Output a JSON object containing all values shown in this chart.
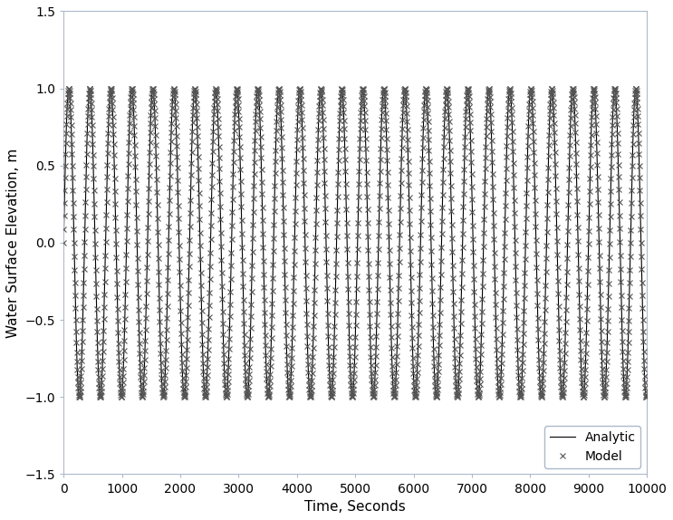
{
  "title": "",
  "xlabel": "Time, Seconds",
  "ylabel": "Water Surface Elevation, m",
  "xlim": [
    0,
    10000
  ],
  "ylim": [
    -1.5,
    1.5
  ],
  "xticks": [
    0,
    1000,
    2000,
    3000,
    4000,
    5000,
    6000,
    7000,
    8000,
    9000,
    10000
  ],
  "yticks": [
    -1.5,
    -1.0,
    -0.5,
    0.0,
    0.5,
    1.0,
    1.5
  ],
  "amplitude": 1.0,
  "period": 360,
  "t_start": 0,
  "t_end": 10000,
  "n_analytic": 10000,
  "n_model": 2000,
  "line_color": "#000000",
  "marker_color": "#555555",
  "legend_labels": [
    "Analytic",
    "Model"
  ],
  "legend_loc": "lower right",
  "background_color": "#ffffff",
  "line_width": 0.8,
  "marker_size": 4,
  "marker_edge_width": 0.8,
  "xlabel_fontsize": 11,
  "ylabel_fontsize": 11,
  "tick_fontsize": 10,
  "spine_color": "#adb9ca",
  "tick_color": "#adb9ca",
  "legend_fontsize": 10,
  "fig_width": 7.43,
  "fig_height": 5.74,
  "dpi": 100
}
